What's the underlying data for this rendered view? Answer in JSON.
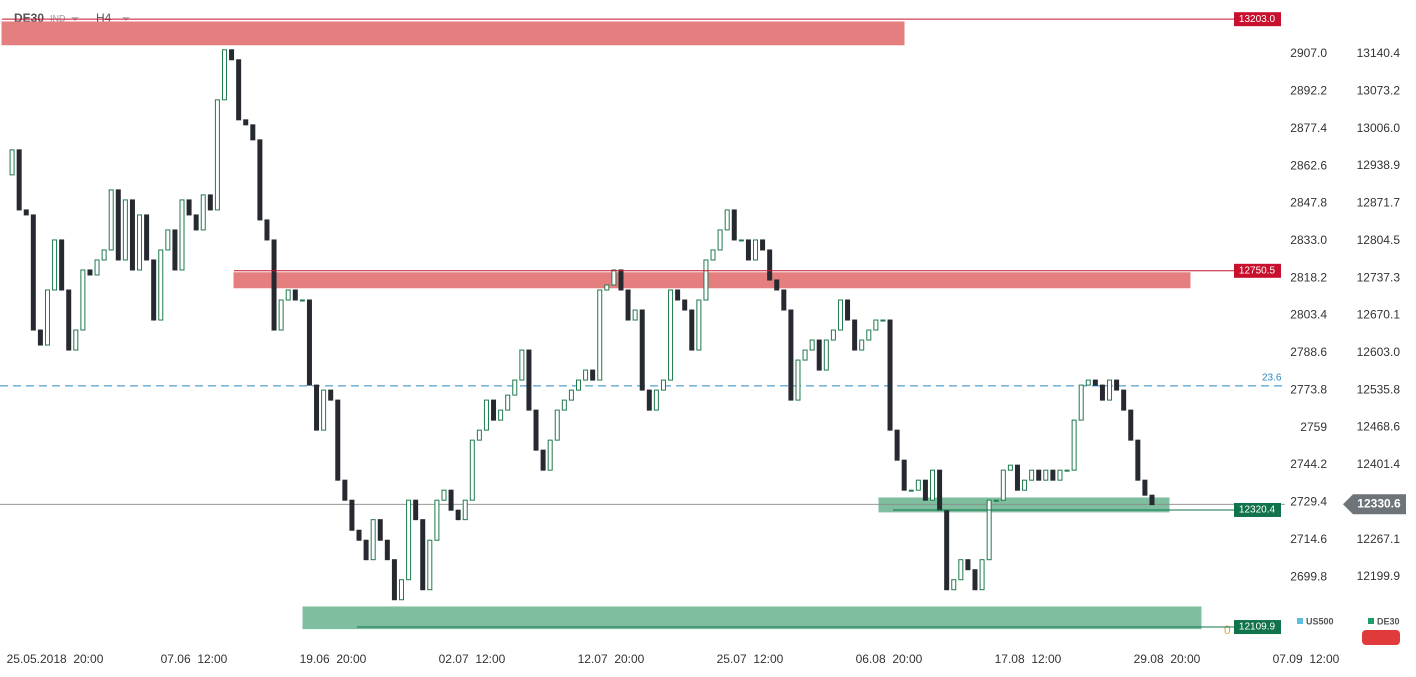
{
  "chart_data": {
    "type": "candlestick",
    "symbol": "DE30",
    "tag": "IND",
    "timeframe": "H4",
    "up_color": "#ffffff",
    "up_stroke": "#1f7a4d",
    "down_color": "#262a30",
    "closes": [
      12923,
      12968,
      12860,
      12851,
      12644,
      12617,
      12716,
      12806,
      12716,
      12608,
      12644,
      12752,
      12743,
      12770,
      12788,
      12896,
      12770,
      12878,
      12752,
      12851,
      12770,
      12662,
      12788,
      12824,
      12752,
      12878,
      12851,
      12824,
      12887,
      12860,
      13058,
      13148,
      13130,
      13022,
      13013,
      12986,
      12842,
      12806,
      12644,
      12698,
      12716,
      12698,
      12698,
      12545,
      12464,
      12536,
      12518,
      12374,
      12338,
      12284,
      12266,
      12231,
      12303,
      12266,
      12231,
      12159,
      12195,
      12338,
      12303,
      12177,
      12266,
      12338,
      12356,
      12320,
      12303,
      12338,
      12446,
      12464,
      12518,
      12482,
      12500,
      12527,
      12554,
      12608,
      12500,
      12428,
      12392,
      12446,
      12500,
      12518,
      12536,
      12554,
      12572,
      12554,
      12716,
      12725,
      12752,
      12716,
      12662,
      12680,
      12536,
      12500,
      12536,
      12554,
      12716,
      12698,
      12680,
      12608,
      12698,
      12770,
      12788,
      12824,
      12860,
      12806,
      12806,
      12770,
      12806,
      12788,
      12734,
      12716,
      12680,
      12518,
      12590,
      12608,
      12626,
      12572,
      12626,
      12644,
      12698,
      12662,
      12608,
      12626,
      12644,
      12662,
      12662,
      12464,
      12410,
      12356,
      12356,
      12374,
      12338,
      12392,
      12320,
      12177,
      12195,
      12231,
      12213,
      12177,
      12231,
      12338,
      12338,
      12392,
      12401,
      12356,
      12374,
      12392,
      12374,
      12392,
      12374,
      12392,
      12392,
      12482,
      12545,
      12554,
      12545,
      12518,
      12554,
      12536,
      12500,
      12446,
      12374,
      12347,
      12330
    ],
    "ylim": [
      12077.6,
      13237.5
    ],
    "yticks": [
      12199.9,
      12267.1,
      12401.4,
      12468.6,
      12535.8,
      {
        "value": 12603.0,
        "label": "12603.0"
      },
      12670.1,
      12737.3,
      12804.5,
      12871.7,
      12938.9,
      {
        "value": 13006.0,
        "label": "13006.0"
      },
      13073.2,
      13140.4
    ],
    "y2lim": [
      2672.9,
      2928.4
    ],
    "y2ticks": [
      2699.8,
      2714.6,
      2729.4,
      2744.2,
      2759.0,
      2773.8,
      2788.6,
      2803.4,
      2818.2,
      {
        "value": 2833.0,
        "label": "2833.0"
      },
      2847.8,
      2862.6,
      2877.4,
      2892.2,
      {
        "value": 2907.0,
        "label": "2907.0"
      }
    ],
    "x_labels": [
      "25.05.2018  20:00",
      "07.06  12:00",
      "19.06  20:00",
      "02.07  12:00",
      "12.07  20:00",
      "25.07  12:00",
      "06.08  20:00",
      "17.08  12:00",
      "29.08  20:00",
      "07.09  12:00"
    ],
    "zones": [
      {
        "low": 13157,
        "high": 13198,
        "color": "#e57f7f"
      },
      {
        "low": 12720,
        "high": 12747,
        "color": "#e57f7f"
      },
      {
        "low": 12317,
        "high": 12342,
        "color": "#7fbf9f"
      },
      {
        "low": 12107,
        "high": 12146,
        "color": "#7fbf9f"
      }
    ],
    "levels": [
      {
        "price": {
          "value": 13203.0,
          "label": "13203.0"
        },
        "color": "#c8102e"
      },
      {
        "price": 12750.5,
        "color": "#c8102e"
      },
      {
        "price": 12320.4,
        "color": "#11734b"
      },
      {
        "price": 12109.9,
        "color": "#11734b"
      }
    ],
    "current": {
      "price": 12330.6,
      "color": "#6f737a"
    },
    "fib": [
      {
        "ratio": 23.6,
        "price": 12543.5,
        "color": "#2a86c4"
      },
      {
        "ratio": 0,
        "price": 12109.9,
        "color": "#e8a33a"
      }
    ],
    "legend": [
      {
        "name": "US500",
        "color": "#5bc0de"
      },
      {
        "name": "DE30",
        "color": "#1f9e6a"
      }
    ]
  }
}
